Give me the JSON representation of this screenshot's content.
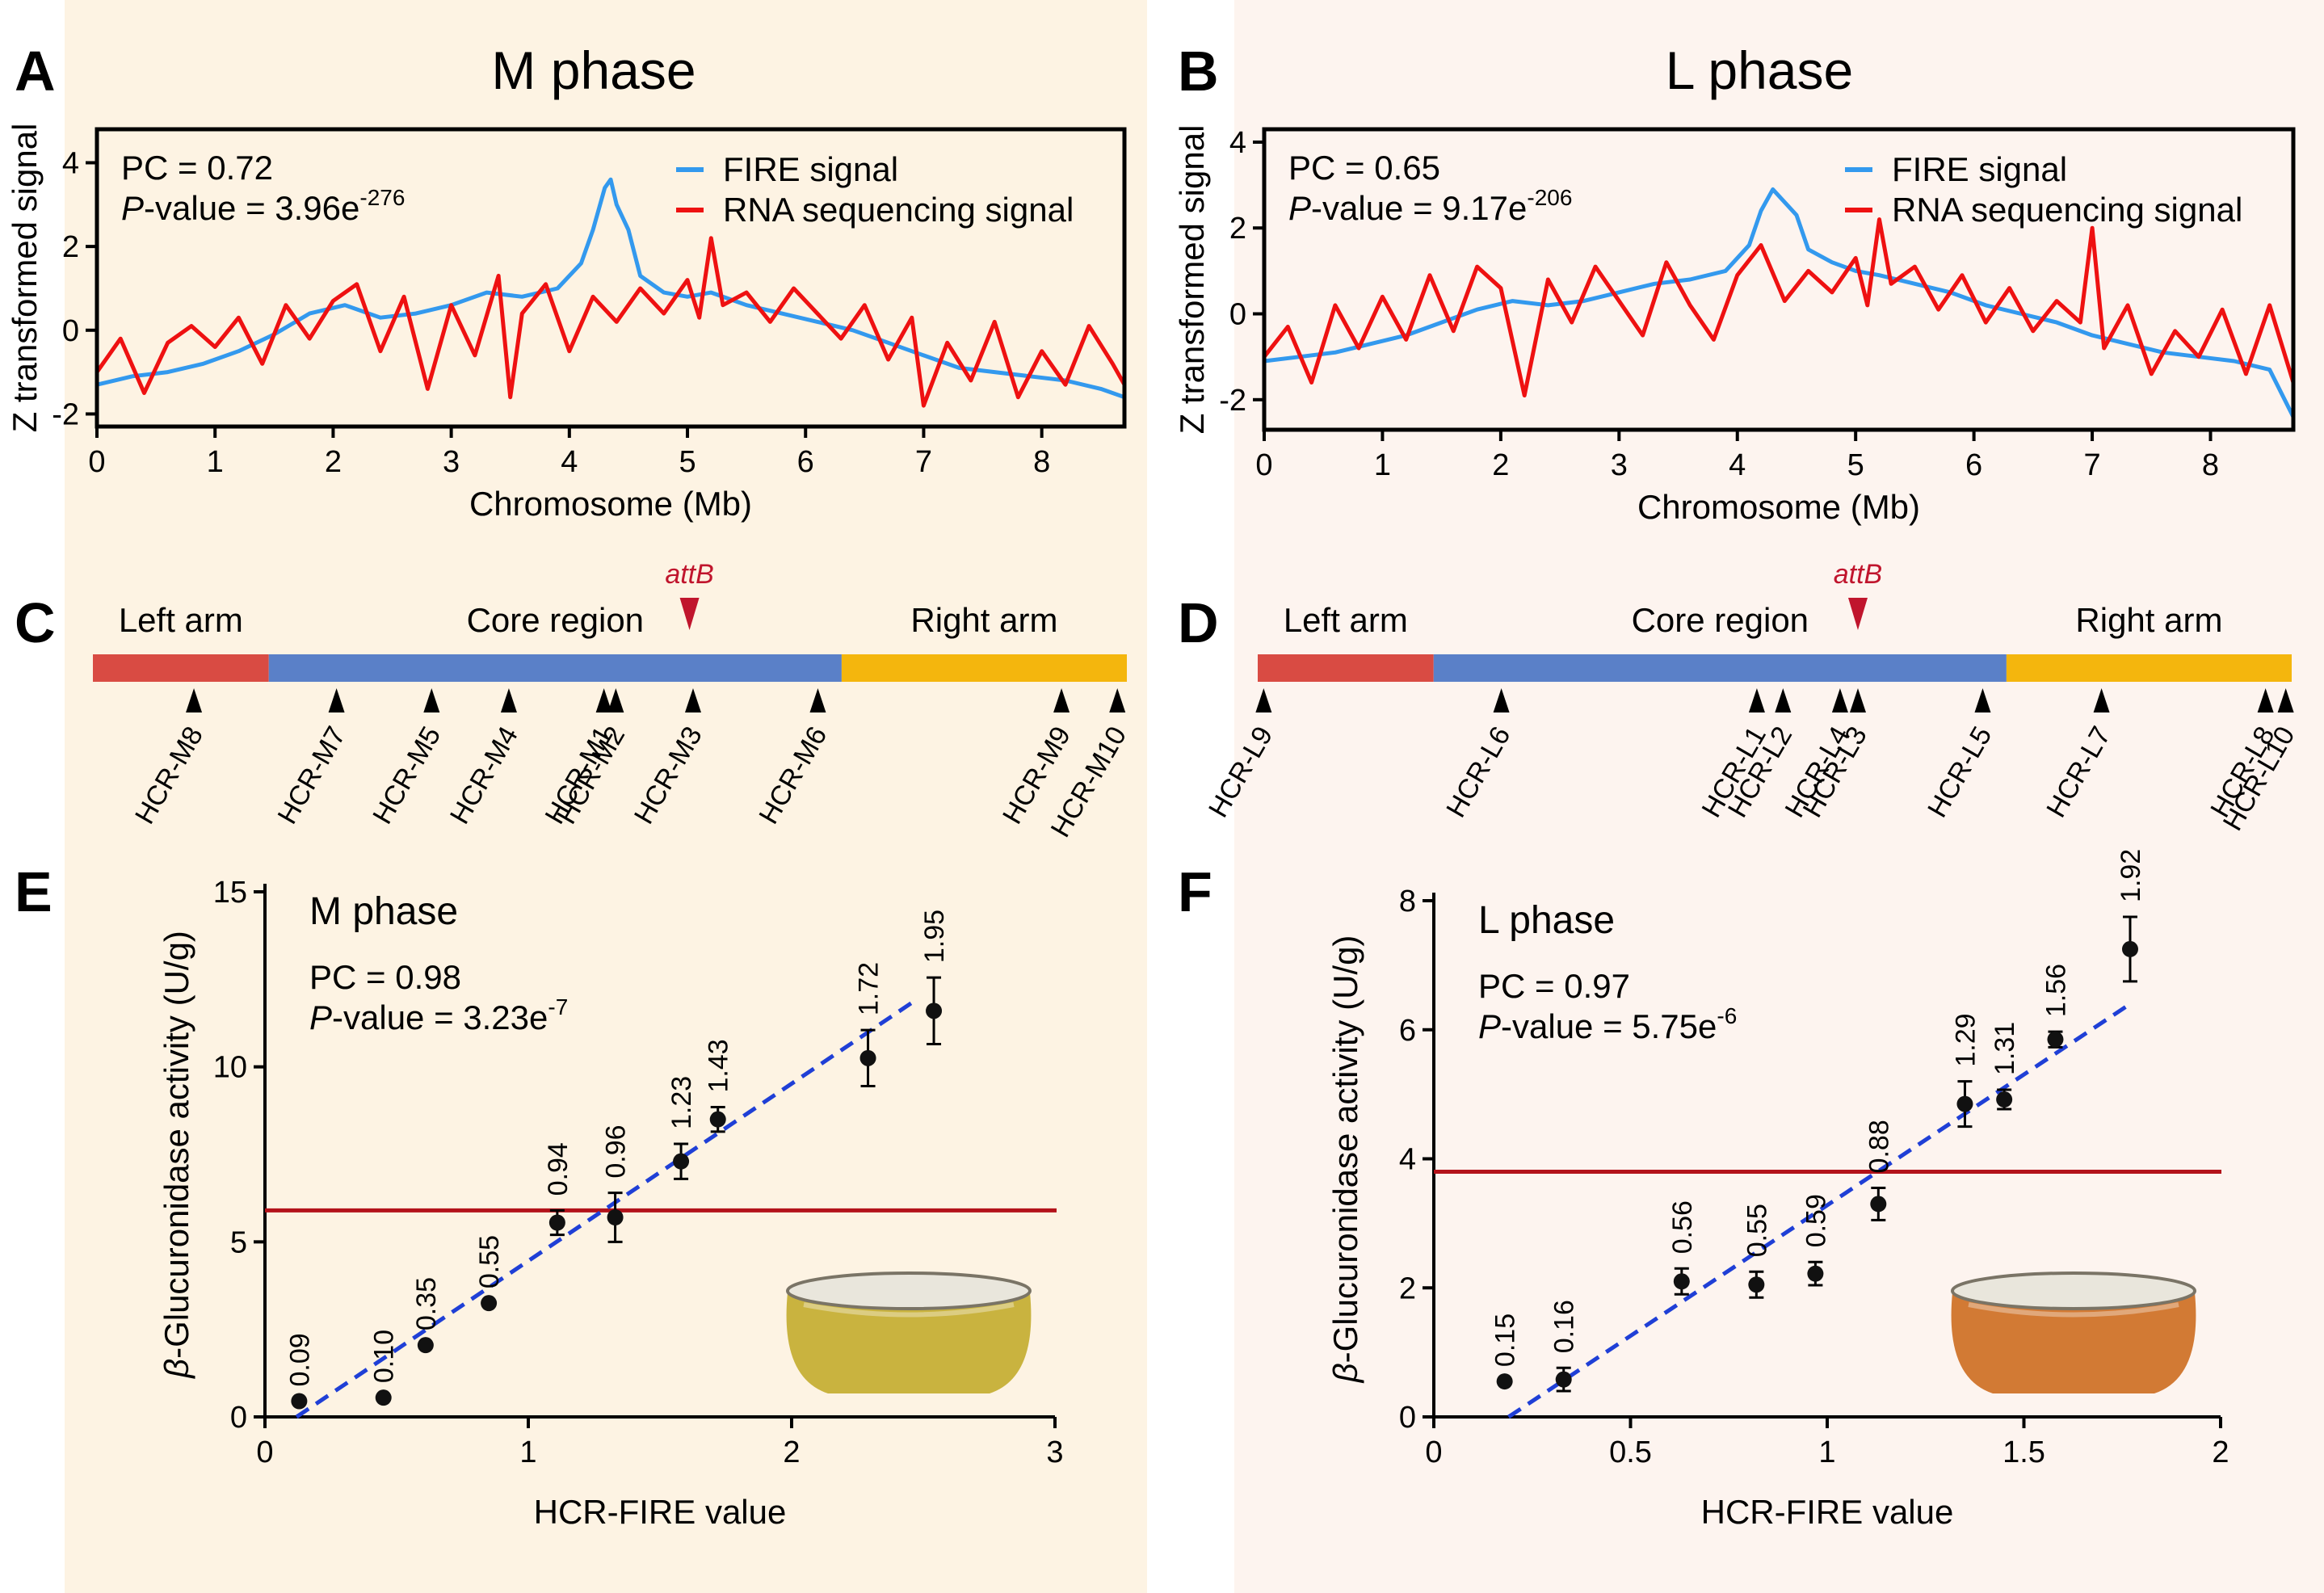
{
  "colors": {
    "bg_left": "#fdf3e3",
    "bg_right": "#fdf4ef",
    "fire": "#3399ee",
    "rna": "#ee1111",
    "left_arm": "#d94b43",
    "core": "#5a80c8",
    "right_arm": "#f4b60d",
    "attb": "#c0152d",
    "threshold": "#b3121a",
    "fit": "#1f3fd6",
    "dot": "#111111",
    "plate_m": "#c9b33f",
    "plate_l": "#d27a34"
  },
  "panels": {
    "A": {
      "letter": "A",
      "title": "M phase"
    },
    "B": {
      "letter": "B",
      "title": "L phase"
    },
    "C": {
      "letter": "C"
    },
    "D": {
      "letter": "D"
    },
    "E": {
      "letter": "E",
      "title": "M phase",
      "pc": "PC = 0.98",
      "pval_prefix": "-value = 3.23e",
      "pval_exp": "-7",
      "p_label": "P",
      "plate_label": "plate photo"
    },
    "F": {
      "letter": "F",
      "title": "L phase",
      "pc": "PC = 0.97",
      "pval_prefix": "-value = 5.75e",
      "pval_exp": "-6",
      "p_label": "P",
      "plate_label": "plate photo"
    }
  },
  "chart_data": [
    {
      "id": "A",
      "type": "line",
      "title": "M phase",
      "xlabel": "Chromosome (Mb)",
      "ylabel": "Z transformed signal",
      "xlim": [
        0,
        8.7
      ],
      "ylim": [
        -2.3,
        4.8
      ],
      "xticks": [
        0,
        1,
        2,
        3,
        4,
        5,
        6,
        7,
        8
      ],
      "yticks": [
        -2,
        0,
        2,
        4
      ],
      "legend": [
        "FIRE signal",
        "RNA sequencing signal"
      ],
      "legend_position": "top-right",
      "stats": {
        "pc": "PC = 0.72",
        "p_label": "P",
        "pval_prefix": "-value = 3.96e",
        "pval_exp": "-276"
      },
      "series": [
        {
          "name": "FIRE signal",
          "color": "#3399ee",
          "x": [
            0,
            0.3,
            0.6,
            0.9,
            1.2,
            1.5,
            1.8,
            2.1,
            2.4,
            2.7,
            3.0,
            3.3,
            3.6,
            3.9,
            4.1,
            4.2,
            4.3,
            4.35,
            4.4,
            4.5,
            4.6,
            4.8,
            5.0,
            5.2,
            5.5,
            5.8,
            6.1,
            6.4,
            6.7,
            7.0,
            7.3,
            7.6,
            7.9,
            8.2,
            8.5,
            8.7
          ],
          "y": [
            -1.3,
            -1.1,
            -1.0,
            -0.8,
            -0.5,
            -0.1,
            0.4,
            0.6,
            0.3,
            0.4,
            0.6,
            0.9,
            0.8,
            1.0,
            1.6,
            2.4,
            3.4,
            3.6,
            3.0,
            2.4,
            1.3,
            0.9,
            0.8,
            0.9,
            0.6,
            0.4,
            0.2,
            0.0,
            -0.3,
            -0.6,
            -0.9,
            -1.0,
            -1.1,
            -1.2,
            -1.4,
            -1.6
          ]
        },
        {
          "name": "RNA sequencing signal",
          "color": "#ee1111",
          "x": [
            0,
            0.2,
            0.4,
            0.6,
            0.8,
            1.0,
            1.2,
            1.4,
            1.6,
            1.8,
            2.0,
            2.2,
            2.4,
            2.6,
            2.8,
            3.0,
            3.2,
            3.4,
            3.5,
            3.6,
            3.8,
            4.0,
            4.2,
            4.4,
            4.6,
            4.8,
            5.0,
            5.1,
            5.2,
            5.3,
            5.5,
            5.7,
            5.9,
            6.1,
            6.3,
            6.5,
            6.7,
            6.9,
            7.0,
            7.2,
            7.4,
            7.6,
            7.8,
            8.0,
            8.2,
            8.4,
            8.6,
            8.7
          ],
          "y": [
            -1.0,
            -0.2,
            -1.5,
            -0.3,
            0.1,
            -0.4,
            0.3,
            -0.8,
            0.6,
            -0.2,
            0.7,
            1.1,
            -0.5,
            0.8,
            -1.4,
            0.6,
            -0.6,
            1.3,
            -1.6,
            0.4,
            1.1,
            -0.5,
            0.8,
            0.2,
            1.0,
            0.4,
            1.2,
            0.3,
            2.2,
            0.6,
            0.9,
            0.2,
            1.0,
            0.4,
            -0.2,
            0.6,
            -0.7,
            0.3,
            -1.8,
            -0.3,
            -1.2,
            0.2,
            -1.6,
            -0.5,
            -1.3,
            0.1,
            -0.8,
            -1.3
          ]
        }
      ]
    },
    {
      "id": "B",
      "type": "line",
      "title": "L phase",
      "xlabel": "Chromosome (Mb)",
      "ylabel": "Z transformed signal",
      "xlim": [
        0,
        8.7
      ],
      "ylim": [
        -2.7,
        4.3
      ],
      "xticks": [
        0,
        1,
        2,
        3,
        4,
        5,
        6,
        7,
        8
      ],
      "yticks": [
        -2,
        0,
        2,
        4
      ],
      "legend": [
        "FIRE signal",
        "RNA sequencing signal"
      ],
      "legend_position": "top-right",
      "stats": {
        "pc": "PC = 0.65",
        "p_label": "P",
        "pval_prefix": "-value = 9.17e",
        "pval_exp": "-206"
      },
      "series": [
        {
          "name": "FIRE signal",
          "color": "#3399ee",
          "x": [
            0,
            0.3,
            0.6,
            0.9,
            1.2,
            1.5,
            1.8,
            2.1,
            2.4,
            2.7,
            3.0,
            3.3,
            3.6,
            3.9,
            4.1,
            4.2,
            4.3,
            4.4,
            4.5,
            4.6,
            4.8,
            5.0,
            5.2,
            5.5,
            5.8,
            6.1,
            6.4,
            6.7,
            7.0,
            7.3,
            7.6,
            7.9,
            8.2,
            8.5,
            8.7
          ],
          "y": [
            -1.1,
            -1.0,
            -0.9,
            -0.7,
            -0.5,
            -0.2,
            0.1,
            0.3,
            0.2,
            0.3,
            0.5,
            0.7,
            0.8,
            1.0,
            1.6,
            2.4,
            2.9,
            2.6,
            2.3,
            1.5,
            1.2,
            1.0,
            0.9,
            0.7,
            0.5,
            0.2,
            0.0,
            -0.2,
            -0.5,
            -0.7,
            -0.9,
            -1.0,
            -1.1,
            -1.3,
            -2.4
          ]
        },
        {
          "name": "RNA sequencing signal",
          "color": "#ee1111",
          "x": [
            0,
            0.2,
            0.4,
            0.6,
            0.8,
            1.0,
            1.2,
            1.4,
            1.6,
            1.8,
            2.0,
            2.2,
            2.4,
            2.6,
            2.8,
            3.0,
            3.2,
            3.4,
            3.6,
            3.8,
            4.0,
            4.2,
            4.4,
            4.6,
            4.8,
            5.0,
            5.1,
            5.2,
            5.3,
            5.5,
            5.7,
            5.9,
            6.1,
            6.3,
            6.5,
            6.7,
            6.9,
            7.0,
            7.1,
            7.3,
            7.5,
            7.7,
            7.9,
            8.1,
            8.3,
            8.5,
            8.7
          ],
          "y": [
            -1.0,
            -0.3,
            -1.6,
            0.2,
            -0.8,
            0.4,
            -0.6,
            0.9,
            -0.4,
            1.1,
            0.6,
            -1.9,
            0.8,
            -0.2,
            1.1,
            0.3,
            -0.5,
            1.2,
            0.2,
            -0.6,
            0.9,
            1.6,
            0.3,
            1.0,
            0.5,
            1.3,
            0.2,
            2.2,
            0.7,
            1.1,
            0.1,
            0.9,
            -0.2,
            0.6,
            -0.4,
            0.3,
            -0.2,
            2.0,
            -0.8,
            0.2,
            -1.4,
            -0.4,
            -1.0,
            0.1,
            -1.4,
            0.2,
            -1.6
          ]
        }
      ]
    },
    {
      "id": "E",
      "type": "scatter",
      "title": "M phase",
      "xlabel": "HCR-FIRE value",
      "ylabel": "β-Glucuronidase activity (U/g)",
      "ylabel_prefix": "β",
      "ylabel_rest": "-Glucuronidase activity (U/g)",
      "xlim": [
        0,
        3
      ],
      "ylim": [
        0,
        15
      ],
      "xticks": [
        0,
        1,
        2,
        3
      ],
      "yticks": [
        0,
        5,
        10,
        15
      ],
      "threshold": 5.9,
      "fit": {
        "x": [
          0.12,
          2.47
        ],
        "y": [
          0,
          11.9
        ]
      },
      "points": [
        {
          "x": 0.13,
          "y": 0.45,
          "err": 0,
          "label": "0.09"
        },
        {
          "x": 0.45,
          "y": 0.55,
          "err": 0,
          "label": "0.10"
        },
        {
          "x": 0.61,
          "y": 2.05,
          "err": 0,
          "label": "0.35"
        },
        {
          "x": 0.85,
          "y": 3.25,
          "err": 0,
          "label": "0.55"
        },
        {
          "x": 1.11,
          "y": 5.55,
          "err": 0.35,
          "label": "0.94"
        },
        {
          "x": 1.33,
          "y": 5.7,
          "err": 0.7,
          "label": "0.96"
        },
        {
          "x": 1.58,
          "y": 7.3,
          "err": 0.5,
          "label": "1.23"
        },
        {
          "x": 1.72,
          "y": 8.5,
          "err": 0.35,
          "label": "1.43"
        },
        {
          "x": 2.29,
          "y": 10.25,
          "err": 0.8,
          "label": "1.72"
        },
        {
          "x": 2.54,
          "y": 11.6,
          "err": 0.95,
          "label": "1.95"
        }
      ]
    },
    {
      "id": "F",
      "type": "scatter",
      "title": "L phase",
      "xlabel": "HCR-FIRE value",
      "ylabel": "β-Glucuronidase activity (U/g)",
      "ylabel_prefix": "β",
      "ylabel_rest": "-Glucuronidase activity (U/g)",
      "xlim": [
        0,
        2
      ],
      "ylim": [
        0,
        8
      ],
      "xticks": [
        0,
        0.5,
        1,
        1.5,
        2
      ],
      "xticklabels": [
        "0",
        "0.5",
        "1",
        "1.5",
        "2"
      ],
      "yticks": [
        0,
        2,
        4,
        6,
        8
      ],
      "threshold": 3.8,
      "fit": {
        "x": [
          0.19,
          1.77
        ],
        "y": [
          0,
          6.4
        ]
      },
      "points": [
        {
          "x": 0.18,
          "y": 0.55,
          "err": 0,
          "label": "0.15"
        },
        {
          "x": 0.33,
          "y": 0.58,
          "err": 0.18,
          "label": "0.16"
        },
        {
          "x": 0.63,
          "y": 2.1,
          "err": 0.2,
          "label": "0.56"
        },
        {
          "x": 0.82,
          "y": 2.05,
          "err": 0.2,
          "label": "0.55"
        },
        {
          "x": 0.97,
          "y": 2.22,
          "err": 0.18,
          "label": "0.59"
        },
        {
          "x": 1.13,
          "y": 3.3,
          "err": 0.25,
          "label": "0.88"
        },
        {
          "x": 1.35,
          "y": 4.85,
          "err": 0.35,
          "label": "1.29"
        },
        {
          "x": 1.45,
          "y": 4.92,
          "err": 0.15,
          "label": "1.31"
        },
        {
          "x": 1.58,
          "y": 5.85,
          "err": 0.12,
          "label": "1.56"
        },
        {
          "x": 1.77,
          "y": 7.25,
          "err": 0.5,
          "label": "1.92"
        }
      ]
    }
  ],
  "chromosome_maps": {
    "C": {
      "length_mb": 8.7,
      "segments": [
        {
          "name": "Left arm",
          "start": 0,
          "end": 1.48,
          "color": "#d94b43"
        },
        {
          "name": "Core region",
          "start": 1.48,
          "end": 6.3,
          "color": "#5a80c8"
        },
        {
          "name": "Right arm",
          "start": 6.3,
          "end": 8.7,
          "color": "#f4b60d"
        }
      ],
      "attb": {
        "label": "attB",
        "pos": 5.02
      },
      "markers": [
        {
          "label": "HCR-M8",
          "pos": 0.85
        },
        {
          "label": "HCR-M7",
          "pos": 2.05
        },
        {
          "label": "HCR-M5",
          "pos": 2.85
        },
        {
          "label": "HCR-M4",
          "pos": 3.5
        },
        {
          "label": "HCR-M1",
          "pos": 4.3
        },
        {
          "label": "HCR-M2",
          "pos": 4.4
        },
        {
          "label": "HCR-M3",
          "pos": 5.05
        },
        {
          "label": "HCR-M6",
          "pos": 6.1
        },
        {
          "label": "HCR-M9",
          "pos": 8.15
        },
        {
          "label": "HCR-M10",
          "pos": 8.62
        }
      ]
    },
    "D": {
      "length_mb": 8.7,
      "segments": [
        {
          "name": "Left arm",
          "start": 0,
          "end": 1.48,
          "color": "#d94b43"
        },
        {
          "name": "Core region",
          "start": 1.48,
          "end": 6.3,
          "color": "#5a80c8"
        },
        {
          "name": "Right arm",
          "start": 6.3,
          "end": 8.7,
          "color": "#f4b60d"
        }
      ],
      "attb": {
        "label": "attB",
        "pos": 5.05
      },
      "markers": [
        {
          "label": "HCR-L9",
          "pos": 0.05
        },
        {
          "label": "HCR-L6",
          "pos": 2.05
        },
        {
          "label": "HCR-L1",
          "pos": 4.2
        },
        {
          "label": "HCR-L2",
          "pos": 4.42
        },
        {
          "label": "HCR-L4",
          "pos": 4.9
        },
        {
          "label": "HCR-L3",
          "pos": 5.05
        },
        {
          "label": "HCR-L5",
          "pos": 6.1
        },
        {
          "label": "HCR-L7",
          "pos": 7.1
        },
        {
          "label": "HCR-L8",
          "pos": 8.48
        },
        {
          "label": "HCR-L10",
          "pos": 8.65
        }
      ]
    }
  }
}
